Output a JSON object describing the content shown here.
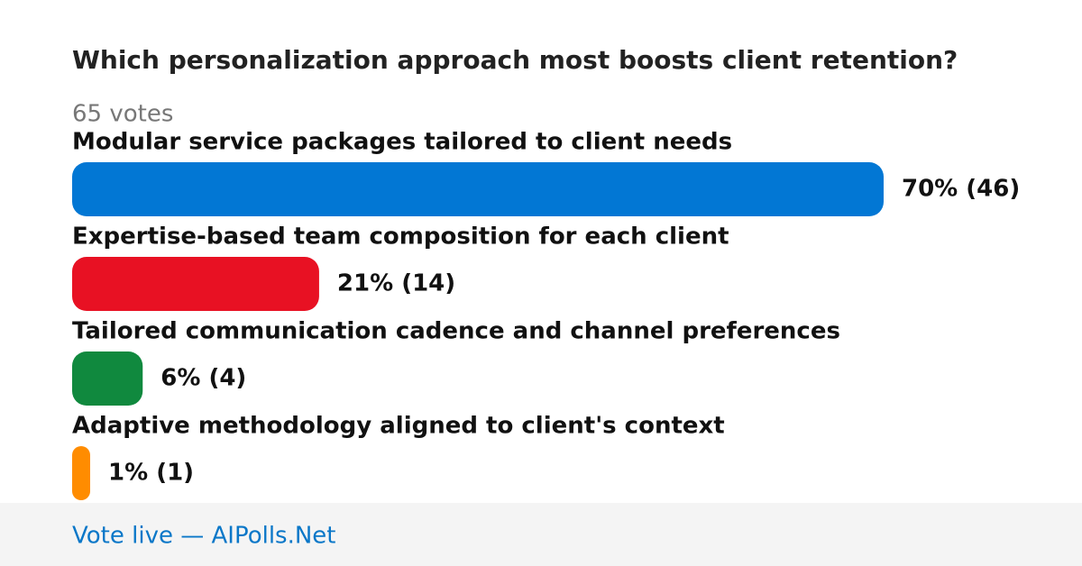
{
  "chart_data": {
    "type": "bar",
    "orientation": "horizontal",
    "title": "Which personalization approach most boosts client retention?",
    "subtitle": "65 votes",
    "categories": [
      "Modular service packages tailored to client needs",
      "Expertise-based team composition for each client",
      "Tailored communication cadence and channel preferences",
      "Adaptive methodology aligned to client's context"
    ],
    "values": [
      46,
      14,
      4,
      1
    ],
    "value_labels": [
      "70% (46)",
      "21% (14)",
      "6% (4)",
      "1% (1)"
    ],
    "colors": [
      "#0277d4",
      "#e81123",
      "#10893e",
      "#ff8c00"
    ],
    "footer": "Vote live — AIPolls.Net"
  }
}
